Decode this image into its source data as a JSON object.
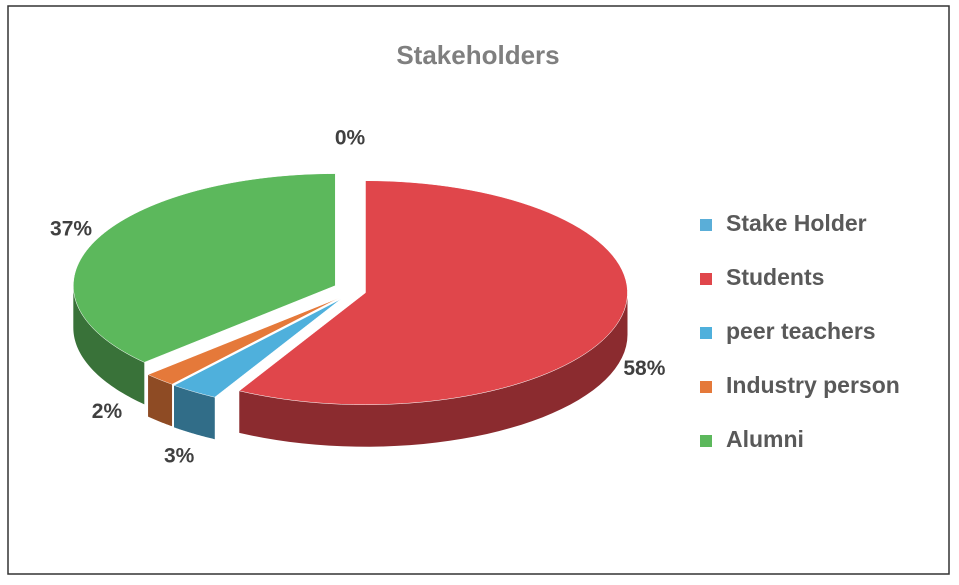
{
  "chart_data": {
    "type": "pie",
    "title": "Stakeholders",
    "categories": [
      "Stake Holder",
      "Students",
      "peer teachers",
      "Industry person",
      "Alumni"
    ],
    "values": [
      0,
      58,
      3,
      2,
      37
    ],
    "value_labels": [
      "0%",
      "58%",
      "3%",
      "2%",
      "37%"
    ],
    "colors": [
      "#5aaed8",
      "#e0464b",
      "#4fb0dc",
      "#e5793a",
      "#5cb85c"
    ],
    "legend": "right"
  }
}
